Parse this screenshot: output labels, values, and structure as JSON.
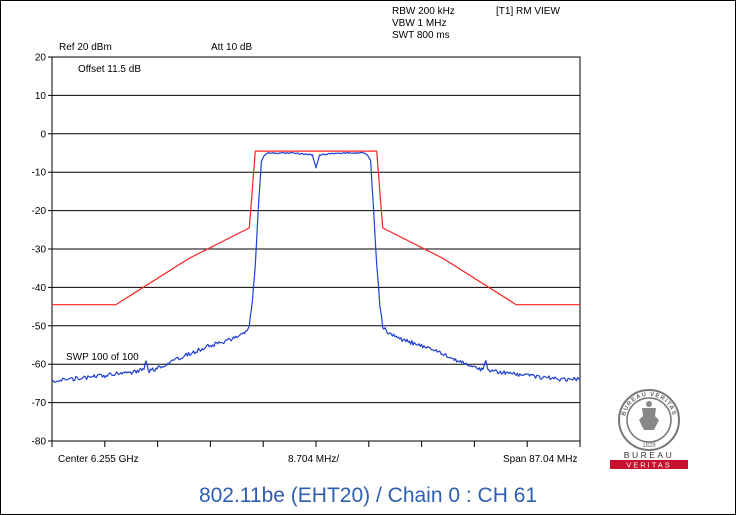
{
  "header": {
    "rbw": "RBW 200 kHz",
    "vbw": "VBW 1 MHz",
    "swt": "SWT 800 ms",
    "trace_mode": "[T1] RM VIEW",
    "ref_level": "Ref 20 dBm",
    "attenuation": "Att  10 dB",
    "offset": "Offset 11.5 dB",
    "sweep": "SWP 100 of 100"
  },
  "footer": {
    "center": "Center 6.255 GHz",
    "div": "8.704 MHz/",
    "span": "Span 87.04 MHz"
  },
  "caption": "802.11be (EHT20) / Chain 0 : CH 61",
  "logo": {
    "top_text": "BUREAU VERITAS",
    "year": "1828",
    "word1": "BUREAU",
    "word2": "VERITAS"
  },
  "colors": {
    "mask": "#ff2020",
    "trace": "#1f3fd0",
    "caption": "#2e5fb0",
    "logo_red": "#c8102e"
  },
  "chart_data": {
    "type": "line",
    "title": "",
    "xlabel": "",
    "ylabel": "",
    "x_unit": "MHz offset from center (6.255 GHz)",
    "xlim": [
      -43.52,
      43.52
    ],
    "ylim": [
      -80,
      20
    ],
    "y_ticks": [
      20,
      10,
      0,
      -10,
      -20,
      -30,
      -40,
      -50,
      -60,
      -70,
      -80
    ],
    "x_divisions": 10,
    "grid": true,
    "series": [
      {
        "name": "",
        "role": "limit-mask",
        "color": "#ff2020",
        "x": [
          -43.52,
          -33.0,
          -21.0,
          -11.0,
          -10.0,
          10.0,
          11.0,
          21.0,
          33.0,
          43.52
        ],
        "y": [
          -44.5,
          -44.5,
          -32.5,
          -24.5,
          -4.5,
          -4.5,
          -24.5,
          -32.5,
          -44.5,
          -44.5
        ]
      },
      {
        "name": "",
        "role": "trace",
        "color": "#1f3fd0",
        "x": [
          -43.52,
          -40.0,
          -35.0,
          -30.0,
          -28.5,
          -28.0,
          -27.5,
          -26.0,
          -22.0,
          -18.0,
          -14.0,
          -12.0,
          -11.0,
          -10.5,
          -10.0,
          -9.6,
          -9.2,
          -9.0,
          -8.5,
          -8.0,
          -4.0,
          -0.6,
          0.0,
          0.6,
          4.0,
          8.0,
          8.5,
          9.0,
          9.2,
          9.6,
          10.0,
          10.5,
          11.0,
          12.0,
          14.0,
          18.0,
          22.0,
          26.0,
          27.5,
          28.0,
          28.5,
          30.0,
          35.0,
          40.0,
          43.52
        ],
        "y": [
          -64.5,
          -63.8,
          -63.0,
          -62.0,
          -61.5,
          -59.5,
          -61.8,
          -61.0,
          -58.0,
          -55.5,
          -53.5,
          -52.0,
          -50.0,
          -44.0,
          -34.0,
          -22.0,
          -12.0,
          -7.0,
          -5.5,
          -5.0,
          -5.0,
          -5.5,
          -9.0,
          -5.5,
          -5.0,
          -5.0,
          -5.5,
          -7.0,
          -12.0,
          -22.0,
          -34.0,
          -44.0,
          -50.0,
          -52.0,
          -53.5,
          -55.5,
          -58.0,
          -61.0,
          -61.5,
          -59.0,
          -61.8,
          -62.0,
          -63.0,
          -63.8,
          -64.0
        ]
      }
    ]
  }
}
